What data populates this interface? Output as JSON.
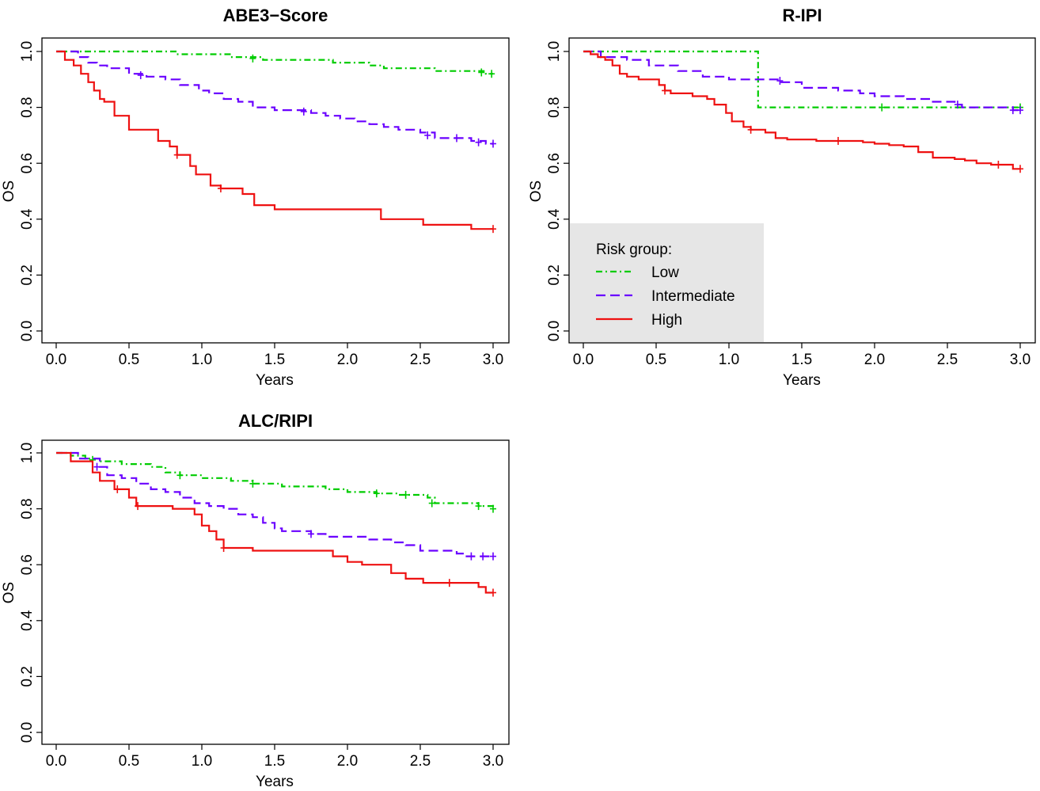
{
  "colors": {
    "low": "#00CC00",
    "intermediate": "#6A00FF",
    "high": "#EE1111"
  },
  "legend": {
    "title": "Risk group:",
    "entries": [
      {
        "key": "low",
        "label": "Low"
      },
      {
        "key": "intermediate",
        "label": "Intermediate"
      },
      {
        "key": "high",
        "label": "High"
      }
    ]
  },
  "chart_data": [
    {
      "type": "line",
      "subtype": "kaplan-meier-step",
      "title": "ABE3−Score",
      "xlabel": "Years",
      "ylabel": "OS",
      "xlim": [
        0,
        3
      ],
      "ylim": [
        0,
        1
      ],
      "x_ticks": [
        "0.0",
        "0.5",
        "1.0",
        "1.5",
        "2.0",
        "2.5",
        "3.0"
      ],
      "y_ticks": [
        "0.0",
        "0.2",
        "0.4",
        "0.6",
        "0.8",
        "1.0"
      ],
      "legend": false,
      "series": [
        {
          "key": "low",
          "steps": [
            [
              0,
              1.0
            ],
            [
              0.82,
              0.99
            ],
            [
              1.2,
              0.98
            ],
            [
              1.42,
              0.97
            ],
            [
              1.9,
              0.96
            ],
            [
              2.15,
              0.95
            ],
            [
              2.25,
              0.94
            ],
            [
              2.6,
              0.93
            ],
            [
              2.95,
              0.92
            ],
            [
              3.0,
              0.92
            ]
          ],
          "censors": [
            [
              1.35,
              0.975
            ],
            [
              2.92,
              0.925
            ],
            [
              2.99,
              0.92
            ]
          ]
        },
        {
          "key": "intermediate",
          "steps": [
            [
              0,
              1.0
            ],
            [
              0.15,
              0.98
            ],
            [
              0.22,
              0.96
            ],
            [
              0.28,
              0.95
            ],
            [
              0.35,
              0.94
            ],
            [
              0.5,
              0.92
            ],
            [
              0.62,
              0.91
            ],
            [
              0.75,
              0.9
            ],
            [
              0.85,
              0.88
            ],
            [
              0.98,
              0.86
            ],
            [
              1.05,
              0.85
            ],
            [
              1.15,
              0.83
            ],
            [
              1.25,
              0.82
            ],
            [
              1.35,
              0.8
            ],
            [
              1.5,
              0.79
            ],
            [
              1.75,
              0.78
            ],
            [
              1.85,
              0.77
            ],
            [
              1.95,
              0.76
            ],
            [
              2.05,
              0.75
            ],
            [
              2.15,
              0.74
            ],
            [
              2.25,
              0.73
            ],
            [
              2.35,
              0.72
            ],
            [
              2.5,
              0.71
            ],
            [
              2.6,
              0.69
            ],
            [
              2.75,
              0.69
            ],
            [
              2.85,
              0.68
            ],
            [
              2.95,
              0.67
            ],
            [
              3.0,
              0.67
            ]
          ],
          "censors": [
            [
              0.58,
              0.915
            ],
            [
              1.7,
              0.785
            ],
            [
              2.55,
              0.7
            ],
            [
              2.75,
              0.69
            ],
            [
              2.9,
              0.675
            ],
            [
              3.0,
              0.67
            ]
          ]
        },
        {
          "key": "high",
          "steps": [
            [
              0,
              1.0
            ],
            [
              0.06,
              0.97
            ],
            [
              0.12,
              0.95
            ],
            [
              0.17,
              0.92
            ],
            [
              0.22,
              0.89
            ],
            [
              0.26,
              0.86
            ],
            [
              0.3,
              0.83
            ],
            [
              0.33,
              0.82
            ],
            [
              0.4,
              0.77
            ],
            [
              0.5,
              0.72
            ],
            [
              0.7,
              0.68
            ],
            [
              0.78,
              0.66
            ],
            [
              0.83,
              0.63
            ],
            [
              0.92,
              0.59
            ],
            [
              0.96,
              0.56
            ],
            [
              1.06,
              0.52
            ],
            [
              1.13,
              0.51
            ],
            [
              1.28,
              0.49
            ],
            [
              1.36,
              0.45
            ],
            [
              1.5,
              0.435
            ],
            [
              2.2,
              0.435
            ],
            [
              2.23,
              0.4
            ],
            [
              2.52,
              0.38
            ],
            [
              2.85,
              0.365
            ],
            [
              3.0,
              0.365
            ]
          ],
          "censors": [
            [
              0.83,
              0.63
            ],
            [
              1.13,
              0.51
            ],
            [
              3.0,
              0.365
            ]
          ]
        }
      ]
    },
    {
      "type": "line",
      "subtype": "kaplan-meier-step",
      "title": "R-IPI",
      "xlabel": "Years",
      "ylabel": "OS",
      "xlim": [
        0,
        3
      ],
      "ylim": [
        0,
        1
      ],
      "x_ticks": [
        "0.0",
        "0.5",
        "1.0",
        "1.5",
        "2.0",
        "2.5",
        "3.0"
      ],
      "y_ticks": [
        "0.0",
        "0.2",
        "0.4",
        "0.6",
        "0.8",
        "1.0"
      ],
      "legend": true,
      "legend_position": "bottom-left",
      "series": [
        {
          "key": "low",
          "steps": [
            [
              0,
              1.0
            ],
            [
              1.2,
              0.8
            ],
            [
              3.0,
              0.8
            ]
          ],
          "censors": [
            [
              2.05,
              0.8
            ],
            [
              3.0,
              0.8
            ]
          ]
        },
        {
          "key": "intermediate",
          "steps": [
            [
              0,
              1.0
            ],
            [
              0.12,
              0.98
            ],
            [
              0.3,
              0.97
            ],
            [
              0.45,
              0.95
            ],
            [
              0.65,
              0.93
            ],
            [
              0.82,
              0.91
            ],
            [
              1.0,
              0.9
            ],
            [
              1.35,
              0.89
            ],
            [
              1.5,
              0.87
            ],
            [
              1.75,
              0.86
            ],
            [
              1.9,
              0.85
            ],
            [
              2.0,
              0.84
            ],
            [
              2.2,
              0.83
            ],
            [
              2.4,
              0.82
            ],
            [
              2.55,
              0.81
            ],
            [
              2.6,
              0.8
            ],
            [
              2.95,
              0.79
            ],
            [
              3.0,
              0.79
            ]
          ],
          "censors": [
            [
              1.35,
              0.895
            ],
            [
              2.57,
              0.81
            ],
            [
              2.95,
              0.79
            ],
            [
              3.0,
              0.79
            ]
          ]
        },
        {
          "key": "high",
          "steps": [
            [
              0,
              1.0
            ],
            [
              0.05,
              0.99
            ],
            [
              0.1,
              0.98
            ],
            [
              0.15,
              0.97
            ],
            [
              0.2,
              0.95
            ],
            [
              0.25,
              0.92
            ],
            [
              0.3,
              0.91
            ],
            [
              0.38,
              0.9
            ],
            [
              0.52,
              0.88
            ],
            [
              0.56,
              0.86
            ],
            [
              0.6,
              0.85
            ],
            [
              0.75,
              0.84
            ],
            [
              0.85,
              0.83
            ],
            [
              0.9,
              0.81
            ],
            [
              0.98,
              0.78
            ],
            [
              1.02,
              0.75
            ],
            [
              1.1,
              0.73
            ],
            [
              1.15,
              0.72
            ],
            [
              1.25,
              0.71
            ],
            [
              1.32,
              0.69
            ],
            [
              1.4,
              0.685
            ],
            [
              1.6,
              0.68
            ],
            [
              1.92,
              0.675
            ],
            [
              2.0,
              0.67
            ],
            [
              2.1,
              0.665
            ],
            [
              2.2,
              0.66
            ],
            [
              2.3,
              0.64
            ],
            [
              2.4,
              0.62
            ],
            [
              2.55,
              0.615
            ],
            [
              2.62,
              0.61
            ],
            [
              2.7,
              0.6
            ],
            [
              2.8,
              0.595
            ],
            [
              2.95,
              0.58
            ],
            [
              3.0,
              0.58
            ]
          ],
          "censors": [
            [
              0.56,
              0.86
            ],
            [
              1.15,
              0.72
            ],
            [
              1.75,
              0.68
            ],
            [
              2.85,
              0.595
            ],
            [
              3.0,
              0.58
            ]
          ]
        }
      ]
    },
    {
      "type": "line",
      "subtype": "kaplan-meier-step",
      "title": "ALC/RIPI",
      "xlabel": "Years",
      "ylabel": "OS",
      "xlim": [
        0,
        3
      ],
      "ylim": [
        0,
        1
      ],
      "x_ticks": [
        "0.0",
        "0.5",
        "1.0",
        "1.5",
        "2.0",
        "2.5",
        "3.0"
      ],
      "y_ticks": [
        "0.0",
        "0.2",
        "0.4",
        "0.6",
        "0.8",
        "1.0"
      ],
      "legend": false,
      "series": [
        {
          "key": "low",
          "steps": [
            [
              0,
              1.0
            ],
            [
              0.1,
              0.99
            ],
            [
              0.2,
              0.98
            ],
            [
              0.3,
              0.97
            ],
            [
              0.45,
              0.96
            ],
            [
              0.65,
              0.95
            ],
            [
              0.75,
              0.93
            ],
            [
              0.85,
              0.92
            ],
            [
              1.0,
              0.91
            ],
            [
              1.2,
              0.9
            ],
            [
              1.35,
              0.89
            ],
            [
              1.55,
              0.88
            ],
            [
              1.85,
              0.87
            ],
            [
              2.0,
              0.86
            ],
            [
              2.2,
              0.855
            ],
            [
              2.35,
              0.85
            ],
            [
              2.55,
              0.84
            ],
            [
              2.6,
              0.82
            ],
            [
              2.9,
              0.81
            ],
            [
              3.0,
              0.8
            ]
          ],
          "censors": [
            [
              0.25,
              0.975
            ],
            [
              0.85,
              0.92
            ],
            [
              1.35,
              0.89
            ],
            [
              2.2,
              0.855
            ],
            [
              2.4,
              0.85
            ],
            [
              2.58,
              0.82
            ],
            [
              2.9,
              0.81
            ],
            [
              3.0,
              0.8
            ]
          ]
        },
        {
          "key": "intermediate",
          "steps": [
            [
              0,
              1.0
            ],
            [
              0.15,
              0.98
            ],
            [
              0.3,
              0.95
            ],
            [
              0.35,
              0.92
            ],
            [
              0.45,
              0.91
            ],
            [
              0.55,
              0.89
            ],
            [
              0.65,
              0.87
            ],
            [
              0.75,
              0.86
            ],
            [
              0.85,
              0.84
            ],
            [
              0.95,
              0.82
            ],
            [
              1.05,
              0.81
            ],
            [
              1.15,
              0.8
            ],
            [
              1.25,
              0.78
            ],
            [
              1.35,
              0.77
            ],
            [
              1.42,
              0.75
            ],
            [
              1.5,
              0.73
            ],
            [
              1.55,
              0.72
            ],
            [
              1.75,
              0.71
            ],
            [
              1.85,
              0.7
            ],
            [
              2.0,
              0.7
            ],
            [
              2.15,
              0.69
            ],
            [
              2.3,
              0.68
            ],
            [
              2.4,
              0.67
            ],
            [
              2.5,
              0.65
            ],
            [
              2.75,
              0.64
            ],
            [
              2.8,
              0.63
            ],
            [
              3.0,
              0.63
            ]
          ],
          "censors": [
            [
              0.28,
              0.95
            ],
            [
              1.75,
              0.71
            ],
            [
              2.85,
              0.63
            ],
            [
              2.93,
              0.63
            ],
            [
              3.0,
              0.63
            ]
          ]
        },
        {
          "key": "high",
          "steps": [
            [
              0,
              1.0
            ],
            [
              0.1,
              0.97
            ],
            [
              0.25,
              0.93
            ],
            [
              0.3,
              0.9
            ],
            [
              0.4,
              0.87
            ],
            [
              0.5,
              0.84
            ],
            [
              0.55,
              0.81
            ],
            [
              0.8,
              0.8
            ],
            [
              0.95,
              0.78
            ],
            [
              1.0,
              0.74
            ],
            [
              1.05,
              0.72
            ],
            [
              1.1,
              0.69
            ],
            [
              1.15,
              0.66
            ],
            [
              1.35,
              0.65
            ],
            [
              1.9,
              0.63
            ],
            [
              2.0,
              0.61
            ],
            [
              2.1,
              0.6
            ],
            [
              2.3,
              0.57
            ],
            [
              2.4,
              0.55
            ],
            [
              2.52,
              0.535
            ],
            [
              2.9,
              0.52
            ],
            [
              2.95,
              0.5
            ],
            [
              3.0,
              0.5
            ]
          ],
          "censors": [
            [
              0.42,
              0.87
            ],
            [
              0.56,
              0.81
            ],
            [
              1.15,
              0.66
            ],
            [
              2.7,
              0.535
            ],
            [
              3.0,
              0.5
            ]
          ]
        }
      ]
    }
  ]
}
